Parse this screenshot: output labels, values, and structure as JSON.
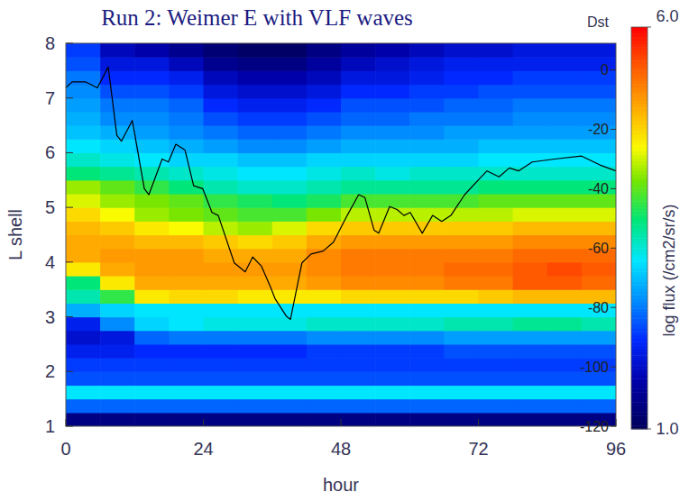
{
  "chart_data": {
    "type": "heatmap",
    "title": "Run 2: Weimer E with VLF waves",
    "x_label": "hour",
    "y_label": "L shell",
    "x": [
      3,
      9,
      15,
      21,
      27,
      33,
      39,
      45,
      51,
      57,
      63,
      69,
      75,
      81,
      87,
      93
    ],
    "y": [
      1.125,
      1.375,
      1.625,
      1.875,
      2.125,
      2.375,
      2.625,
      2.875,
      3.125,
      3.375,
      3.625,
      3.875,
      4.125,
      4.375,
      4.625,
      4.875,
      5.125,
      5.375,
      5.625,
      5.875,
      6.125,
      6.375,
      6.625,
      6.875,
      7.125,
      7.375,
      7.625,
      7.875
    ],
    "cells": [
      [
        1.3,
        1.3,
        1.3,
        1.3,
        1.3,
        1.3,
        1.3,
        1.3,
        1.3,
        1.3,
        1.3,
        1.3,
        1.3,
        1.3,
        1.3,
        1.3
      ],
      [
        2.4,
        2.4,
        2.4,
        2.4,
        2.4,
        2.4,
        2.4,
        2.4,
        2.4,
        2.4,
        2.4,
        2.4,
        2.4,
        2.4,
        2.4,
        2.4
      ],
      [
        3.1,
        3.1,
        3.1,
        3.1,
        3.1,
        3.1,
        3.1,
        3.1,
        3.1,
        3.1,
        3.1,
        3.1,
        3.1,
        3.1,
        3.1,
        3.1
      ],
      [
        2.3,
        2.3,
        2.3,
        2.3,
        2.3,
        2.3,
        2.3,
        2.3,
        2.3,
        2.3,
        2.3,
        2.3,
        2.3,
        2.3,
        2.3,
        2.3
      ],
      [
        2.2,
        2.2,
        2.2,
        2.2,
        2.2,
        2.2,
        2.2,
        2.2,
        2.2,
        2.2,
        2.2,
        2.2,
        2.2,
        2.2,
        2.2,
        2.2
      ],
      [
        2.0,
        2.0,
        2.1,
        2.1,
        2.1,
        2.1,
        2.1,
        2.2,
        2.2,
        2.2,
        2.2,
        2.3,
        2.3,
        2.3,
        2.3,
        2.3
      ],
      [
        1.8,
        1.9,
        2.4,
        2.5,
        2.5,
        2.5,
        2.5,
        2.6,
        2.6,
        2.6,
        2.6,
        2.7,
        2.7,
        2.7,
        2.7,
        2.7
      ],
      [
        2.0,
        2.6,
        3.0,
        3.1,
        3.2,
        3.2,
        3.2,
        3.3,
        3.3,
        3.3,
        3.3,
        3.4,
        3.4,
        3.5,
        3.5,
        3.4
      ],
      [
        2.8,
        3.0,
        3.1,
        3.1,
        3.1,
        3.1,
        3.1,
        3.1,
        3.1,
        3.1,
        3.1,
        3.1,
        3.1,
        3.1,
        3.1,
        3.1
      ],
      [
        3.4,
        3.8,
        4.6,
        4.7,
        4.7,
        4.6,
        4.6,
        4.6,
        4.7,
        4.7,
        4.7,
        4.7,
        4.8,
        4.9,
        4.9,
        4.9
      ],
      [
        3.6,
        4.6,
        5.0,
        5.0,
        5.0,
        5.0,
        5.0,
        5.1,
        5.2,
        5.2,
        5.2,
        5.3,
        5.3,
        5.5,
        5.5,
        5.4
      ],
      [
        4.6,
        5.0,
        5.1,
        5.1,
        5.1,
        5.1,
        5.1,
        5.2,
        5.3,
        5.3,
        5.3,
        5.4,
        5.4,
        5.5,
        5.6,
        5.5
      ],
      [
        5.0,
        5.1,
        5.1,
        5.1,
        5.0,
        5.0,
        5.0,
        5.2,
        5.3,
        5.3,
        5.3,
        5.3,
        5.3,
        5.4,
        5.4,
        5.4
      ],
      [
        5.0,
        5.0,
        4.9,
        4.9,
        4.8,
        4.7,
        4.8,
        5.0,
        5.1,
        5.1,
        5.1,
        5.1,
        5.1,
        5.2,
        5.2,
        5.2
      ],
      [
        4.9,
        4.8,
        4.6,
        4.5,
        4.3,
        4.2,
        4.4,
        4.7,
        4.8,
        4.8,
        4.8,
        4.8,
        4.8,
        4.9,
        4.9,
        4.9
      ],
      [
        4.7,
        4.5,
        4.2,
        4.1,
        4.0,
        3.9,
        3.9,
        4.1,
        4.3,
        4.3,
        4.3,
        4.3,
        4.3,
        4.4,
        4.4,
        4.4
      ],
      [
        4.4,
        4.2,
        4.1,
        4.0,
        3.8,
        3.7,
        3.6,
        3.7,
        3.9,
        3.9,
        3.9,
        3.9,
        4.0,
        4.0,
        4.0,
        4.0
      ],
      [
        4.2,
        4.0,
        3.8,
        3.6,
        3.4,
        3.3,
        3.3,
        3.4,
        3.5,
        3.5,
        3.5,
        3.5,
        3.6,
        3.6,
        3.6,
        3.6
      ],
      [
        3.6,
        3.5,
        3.4,
        3.3,
        3.2,
        3.1,
        3.1,
        3.2,
        3.3,
        3.2,
        3.3,
        3.3,
        3.3,
        3.3,
        3.3,
        3.3
      ],
      [
        3.3,
        3.2,
        3.1,
        3.0,
        3.0,
        2.9,
        2.9,
        3.0,
        3.0,
        3.0,
        3.0,
        3.0,
        3.1,
        3.1,
        3.1,
        3.1
      ],
      [
        3.1,
        3.0,
        2.9,
        2.8,
        2.7,
        2.6,
        2.6,
        2.7,
        2.8,
        2.8,
        2.8,
        2.8,
        2.9,
        2.9,
        2.9,
        2.9
      ],
      [
        2.9,
        2.8,
        2.7,
        2.6,
        2.5,
        2.4,
        2.4,
        2.5,
        2.6,
        2.6,
        2.6,
        2.7,
        2.7,
        2.7,
        2.7,
        2.7
      ],
      [
        2.8,
        2.6,
        2.6,
        2.5,
        2.3,
        2.2,
        2.2,
        2.3,
        2.4,
        2.4,
        2.5,
        2.5,
        2.5,
        2.6,
        2.6,
        2.6
      ],
      [
        2.7,
        2.5,
        2.5,
        2.4,
        2.1,
        2.0,
        2.0,
        2.1,
        2.3,
        2.3,
        2.3,
        2.4,
        2.4,
        2.5,
        2.5,
        2.5
      ],
      [
        2.6,
        2.3,
        2.3,
        2.2,
        1.9,
        1.8,
        1.8,
        1.9,
        2.1,
        2.1,
        2.2,
        2.2,
        2.3,
        2.3,
        2.3,
        2.3
      ],
      [
        2.5,
        2.1,
        2.1,
        2.0,
        1.7,
        1.6,
        1.6,
        1.7,
        1.9,
        1.9,
        2.0,
        2.1,
        2.1,
        2.2,
        2.2,
        2.2
      ],
      [
        2.3,
        1.9,
        1.9,
        1.7,
        1.4,
        1.3,
        1.3,
        1.5,
        1.7,
        1.8,
        1.9,
        2.0,
        2.0,
        2.0,
        2.0,
        2.0
      ],
      [
        2.2,
        1.7,
        1.6,
        1.4,
        1.2,
        1.1,
        1.1,
        1.3,
        1.5,
        1.6,
        1.7,
        1.8,
        1.8,
        1.9,
        1.9,
        1.9
      ]
    ],
    "xlim": [
      0,
      96
    ],
    "xticks": [
      0,
      24,
      48,
      72,
      96
    ],
    "ylim": [
      1,
      8
    ],
    "yticks": [
      1,
      2,
      3,
      4,
      5,
      6,
      7,
      8
    ],
    "y2lim": [
      -120,
      9
    ],
    "y2ticks": [
      -120,
      -100,
      -80,
      -60,
      -40,
      -20,
      0
    ],
    "colorbar": {
      "label": "log flux (/cm2/sr/s)",
      "range": [
        1,
        6
      ],
      "ticks": [
        {
          "value": 1,
          "label": "1.0"
        },
        {
          "value": 6,
          "label": "6.0"
        }
      ]
    },
    "series": [
      {
        "name": "Dst",
        "type": "line",
        "axis": "y2",
        "color": "#000000",
        "x": [
          0,
          1.1,
          3.4,
          5.5,
          7.4,
          8.9,
          9.7,
          11.6,
          13.7,
          14.5,
          16.8,
          17.9,
          19.2,
          20.8,
          22.3,
          23.9,
          25.5,
          26.6,
          29.4,
          31.3,
          32.6,
          34.1,
          35.7,
          36.5,
          38.5,
          39.2,
          41.2,
          42.8,
          44.9,
          46.7,
          49.1,
          51.1,
          52.2,
          53.8,
          54.6,
          56.5,
          57.8,
          59.0,
          60.1,
          62.2,
          64.0,
          65.6,
          67.2,
          69.6,
          72.0,
          73.5,
          75.6,
          77.4,
          79.0,
          81.4,
          85.3,
          90.0,
          93.2,
          96
        ],
        "values": [
          -6,
          -4,
          -4,
          -6,
          1,
          -22,
          -24,
          -17,
          -40,
          -42,
          -30,
          -31,
          -25,
          -27,
          -39,
          -40,
          -48,
          -49,
          -65,
          -68,
          -63,
          -66,
          -73,
          -77,
          -83,
          -84,
          -65,
          -62,
          -61,
          -58,
          -49,
          -42,
          -43,
          -54,
          -55,
          -46,
          -47,
          -49,
          -48,
          -55,
          -49,
          -51,
          -49,
          -42,
          -37,
          -34,
          -36,
          -33,
          -34,
          -31,
          -30,
          -29,
          -32,
          -34
        ]
      }
    ]
  }
}
